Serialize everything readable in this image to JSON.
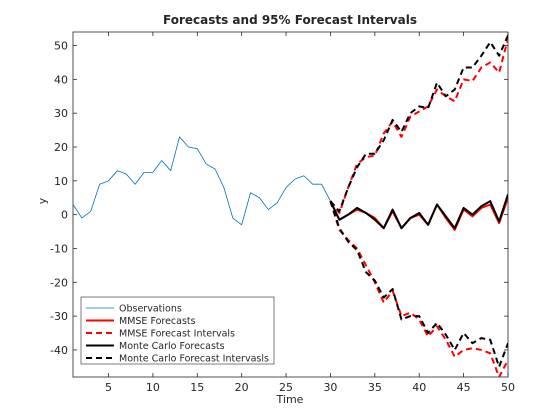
{
  "chart_data": {
    "type": "line",
    "title": "Forecasts and 95% Forecast Intervals",
    "xlabel": "Time",
    "ylabel": "y",
    "xlim": [
      1,
      50
    ],
    "ylim": [
      -48,
      54
    ],
    "xticks": [
      5,
      10,
      15,
      20,
      25,
      30,
      35,
      40,
      45,
      50
    ],
    "yticks": [
      -40,
      -30,
      -20,
      -10,
      0,
      10,
      20,
      30,
      40,
      50
    ],
    "grid": false,
    "legend_position": "bottom-left",
    "series": [
      {
        "name": "Observations",
        "color": "#0072BD",
        "style": "solid",
        "x": [
          1,
          2,
          3,
          4,
          5,
          6,
          7,
          8,
          9,
          10,
          11,
          12,
          13,
          14,
          15,
          16,
          17,
          18,
          19,
          20,
          21,
          22,
          23,
          24,
          25,
          26,
          27,
          28,
          29,
          30
        ],
        "y": [
          3,
          -1,
          1,
          9,
          10,
          13,
          12,
          9,
          12.5,
          12.5,
          16,
          13,
          23,
          20,
          19.5,
          15,
          13.5,
          8,
          -1,
          -3,
          6.5,
          5,
          1.5,
          3.5,
          8,
          10.5,
          11.5,
          9,
          9,
          4
        ]
      },
      {
        "name": "MMSE Forecasts",
        "color": "#FF0000",
        "style": "solid",
        "x": [
          30,
          31,
          32,
          33,
          34,
          35,
          36,
          37,
          38,
          39,
          40,
          41,
          42,
          43,
          44,
          45,
          46,
          47,
          48,
          49,
          50
        ],
        "y": [
          4,
          -1.5,
          0,
          1.5,
          0.5,
          -1,
          -4,
          1,
          -4,
          -1,
          0,
          -3,
          3,
          -1,
          -4.5,
          1.5,
          -0.5,
          2,
          3,
          -2.5,
          5
        ]
      },
      {
        "name": "MMSE Forecast Intervals",
        "color": "#FF0000",
        "style": "dashed",
        "upper": {
          "x": [
            30,
            31,
            32,
            33,
            34,
            35,
            36,
            37,
            38,
            39,
            40,
            41,
            42,
            43,
            44,
            45,
            46,
            47,
            48,
            49,
            50
          ],
          "y": [
            4,
            0.5,
            8,
            15,
            17,
            17.5,
            24,
            27.5,
            23,
            29,
            30.5,
            32,
            37,
            35,
            33.5,
            40,
            39.5,
            43.5,
            45,
            42,
            52
          ]
        },
        "lower": {
          "x": [
            30,
            31,
            32,
            33,
            34,
            35,
            36,
            37,
            38,
            39,
            40,
            41,
            42,
            43,
            44,
            45,
            46,
            47,
            48,
            49,
            50
          ],
          "y": [
            4,
            -4.5,
            -7.5,
            -10,
            -15,
            -20,
            -26,
            -22.5,
            -30,
            -29,
            -31,
            -36,
            -33,
            -37,
            -42,
            -40,
            -39.5,
            -40,
            -41,
            -48,
            -43
          ]
        }
      },
      {
        "name": "Monte Carlo Forecasts",
        "color": "#000000",
        "style": "solid",
        "x": [
          30,
          31,
          32,
          33,
          34,
          35,
          36,
          37,
          38,
          39,
          40,
          41,
          42,
          43,
          44,
          45,
          46,
          47,
          48,
          49,
          50
        ],
        "y": [
          4,
          -1.5,
          0,
          2,
          0.5,
          -1.5,
          -4,
          1.5,
          -4,
          -1,
          0.5,
          -3,
          3,
          -0.5,
          -4,
          2,
          0,
          2.5,
          4,
          -2,
          6
        ]
      },
      {
        "name": "Monte Carlo Forecast Intervasls",
        "color": "#000000",
        "style": "dashed",
        "upper": {
          "x": [
            30,
            31,
            32,
            33,
            34,
            35,
            36,
            37,
            38,
            39,
            40,
            41,
            42,
            43,
            44,
            45,
            46,
            47,
            48,
            49,
            50
          ],
          "y": [
            4,
            1,
            8,
            14,
            18,
            18,
            22,
            28,
            24.5,
            30,
            32,
            31.5,
            39,
            35,
            37,
            43.5,
            43.5,
            47,
            51,
            47,
            53
          ]
        },
        "lower": {
          "x": [
            30,
            31,
            32,
            33,
            34,
            35,
            36,
            37,
            38,
            39,
            40,
            41,
            42,
            43,
            44,
            45,
            46,
            47,
            48,
            49,
            50
          ],
          "y": [
            4,
            -4,
            -8,
            -10.5,
            -17,
            -19.5,
            -24.5,
            -22,
            -31,
            -30,
            -30,
            -35,
            -32,
            -35.5,
            -40,
            -35,
            -38,
            -36.5,
            -37,
            -45,
            -38
          ]
        }
      }
    ]
  }
}
